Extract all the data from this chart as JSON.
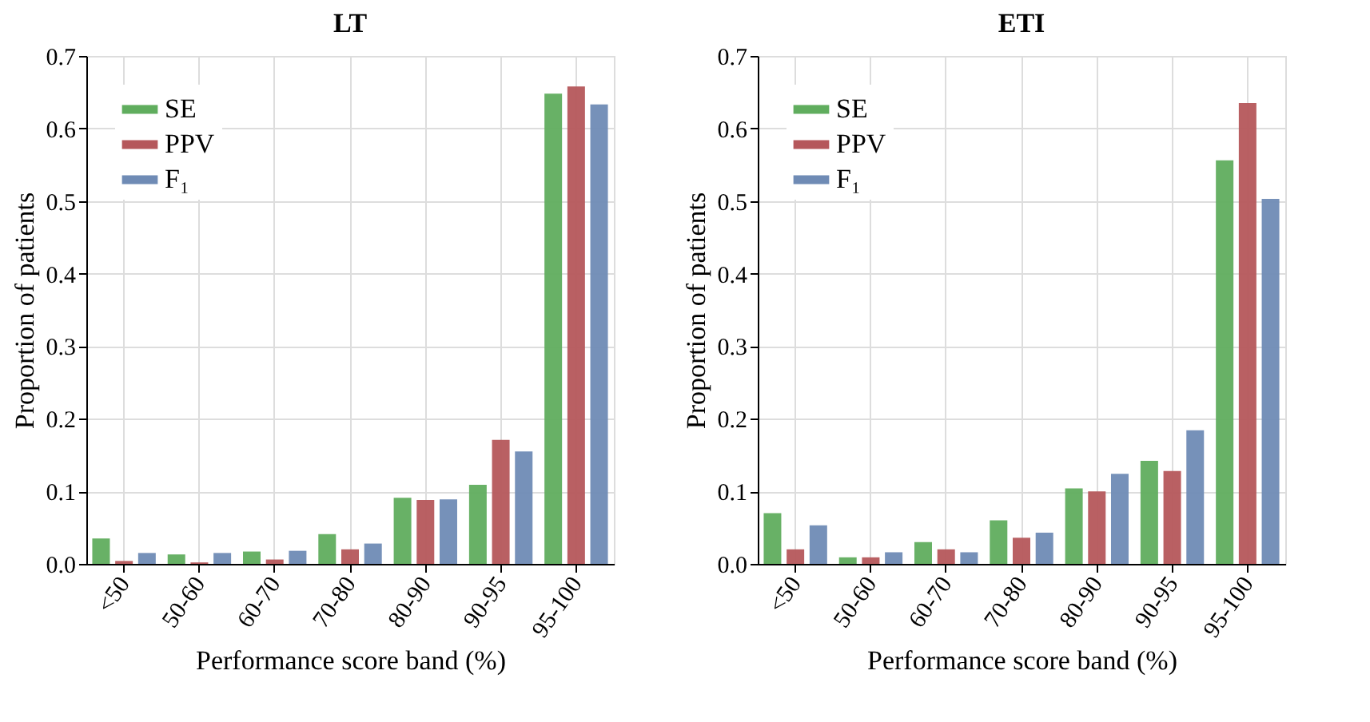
{
  "chart_data": [
    {
      "type": "bar",
      "title": "LT",
      "xlabel": "Performance score band (%)",
      "ylabel": "Proportion of patients",
      "categories": [
        "<50",
        "50-60",
        "60-70",
        "70-80",
        "80-90",
        "90-95",
        "95-100"
      ],
      "series": [
        {
          "name": "SE",
          "color": "#60ad5e",
          "values": [
            0.035,
            0.013,
            0.017,
            0.041,
            0.091,
            0.109,
            0.648
          ]
        },
        {
          "name": "PPV",
          "color": "#b5575b",
          "values": [
            0.004,
            0.002,
            0.006,
            0.02,
            0.088,
            0.171,
            0.658
          ]
        },
        {
          "name": "F₁",
          "color": "#6f8bb5",
          "values": [
            0.015,
            0.015,
            0.018,
            0.028,
            0.089,
            0.155,
            0.633
          ]
        }
      ],
      "ylim": [
        0,
        0.7
      ],
      "yticks": [
        {
          "value": 0,
          "label": "0.0"
        },
        {
          "value": 0.1,
          "label": "0.1"
        },
        {
          "value": 0.2,
          "label": "0.2"
        },
        {
          "value": 0.3,
          "label": "0.3"
        },
        {
          "value": 0.4,
          "label": "0.4"
        },
        {
          "value": 0.5,
          "label": "0.5"
        },
        {
          "value": 0.6,
          "label": "0.6"
        },
        {
          "value": 0.7,
          "label": "0.7"
        }
      ],
      "grid": true,
      "legend": "top left"
    },
    {
      "type": "bar",
      "title": "ETI",
      "xlabel": "Performance score band (%)",
      "ylabel": "Proportion of patients",
      "categories": [
        "<50",
        "50-60",
        "60-70",
        "70-80",
        "80-90",
        "90-95",
        "95-100"
      ],
      "series": [
        {
          "name": "SE",
          "color": "#60ad5e",
          "values": [
            0.07,
            0.009,
            0.03,
            0.06,
            0.104,
            0.142,
            0.556
          ]
        },
        {
          "name": "PPV",
          "color": "#b5575b",
          "values": [
            0.02,
            0.009,
            0.02,
            0.036,
            0.1,
            0.128,
            0.635
          ]
        },
        {
          "name": "F₁",
          "color": "#6f8bb5",
          "values": [
            0.053,
            0.016,
            0.016,
            0.043,
            0.124,
            0.184,
            0.503
          ]
        }
      ],
      "ylim": [
        0,
        0.7
      ],
      "yticks": [
        {
          "value": 0,
          "label": "0.0"
        },
        {
          "value": 0.1,
          "label": "0.1"
        },
        {
          "value": 0.2,
          "label": "0.2"
        },
        {
          "value": 0.3,
          "label": "0.3"
        },
        {
          "value": 0.4,
          "label": "0.4"
        },
        {
          "value": 0.5,
          "label": "0.5"
        },
        {
          "value": 0.6,
          "label": "0.6"
        },
        {
          "value": 0.7,
          "label": "0.7"
        }
      ],
      "grid": true,
      "legend": "top left"
    }
  ]
}
